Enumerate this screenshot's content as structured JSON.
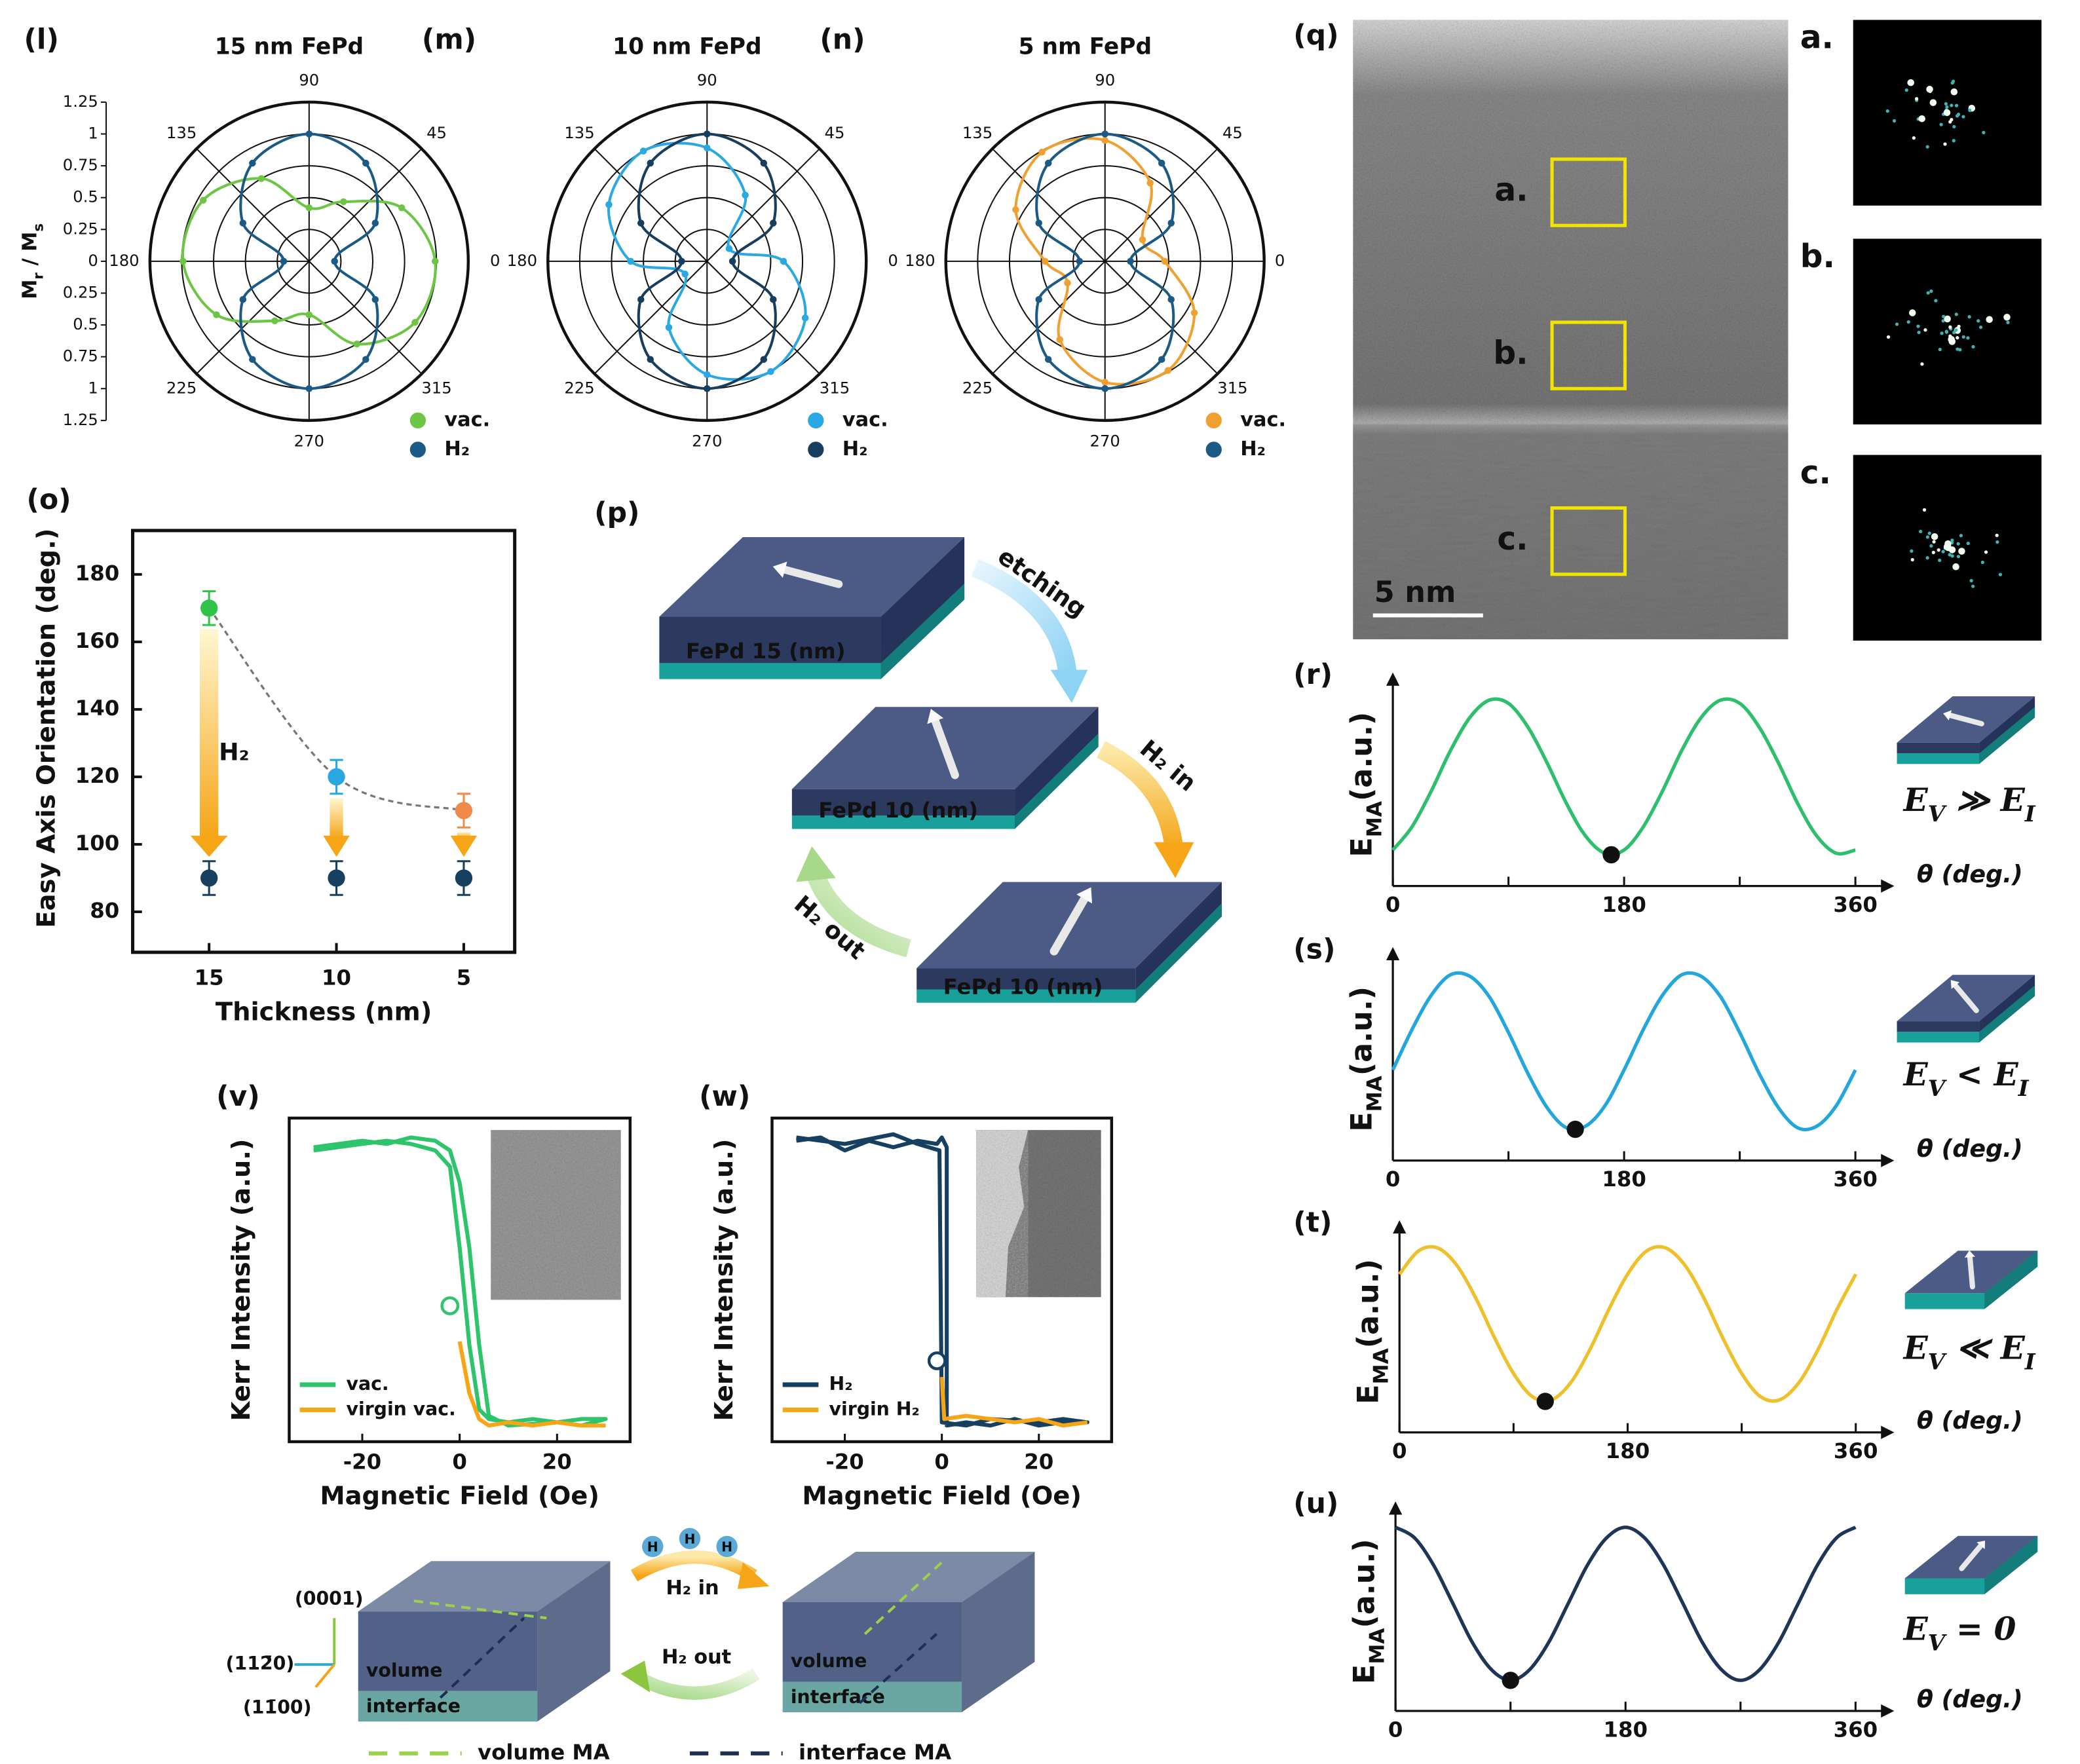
{
  "chart_data": [
    {
      "type": "polar",
      "label": "(l)",
      "title": "15 nm FePd",
      "r_label": [
        {
          "text": "M"
        },
        {
          "text": "r",
          "sub": true
        },
        {
          "text": " / M"
        },
        {
          "text": "s",
          "sub": true
        }
      ],
      "rlim": [
        0,
        1.25
      ],
      "rticks": [
        0,
        0.25,
        0.5,
        0.75,
        1,
        1.25
      ],
      "rgrid": [
        0.25,
        0.5,
        0.75,
        1,
        1.25
      ],
      "thetaticks": [
        45,
        90,
        135,
        180,
        225,
        270,
        315
      ],
      "theta": [
        0,
        30,
        60,
        90,
        120,
        150,
        180,
        210,
        240,
        270,
        300,
        330
      ],
      "series": [
        {
          "name": "vac.",
          "color": "#6cc644",
          "values": [
            0.99,
            0.84,
            0.54,
            0.42,
            0.75,
            0.96,
            0.99,
            0.84,
            0.54,
            0.42,
            0.75,
            0.96
          ]
        },
        {
          "name": "H₂",
          "color": "#1b5a85",
          "values": [
            0.2,
            0.6,
            0.89,
            1,
            0.89,
            0.6,
            0.2,
            0.6,
            0.89,
            1,
            0.89,
            0.6
          ]
        }
      ]
    },
    {
      "type": "polar",
      "label": "(m)",
      "title": "10 nm FePd",
      "rlim": [
        0,
        1.25
      ],
      "rticks": [
        0
      ],
      "rgrid": [
        0.25,
        0.5,
        0.75,
        1,
        1.25
      ],
      "thetaticks": [
        45,
        90,
        135,
        180,
        225,
        270,
        315
      ],
      "theta": [
        0,
        30,
        60,
        90,
        120,
        150,
        180,
        210,
        240,
        270,
        300,
        330
      ],
      "series": [
        {
          "name": "vac.",
          "color": "#2aa8e3",
          "values": [
            0.6,
            0.2,
            0.6,
            0.89,
            1,
            0.89,
            0.6,
            0.2,
            0.6,
            0.89,
            1,
            0.89
          ]
        },
        {
          "name": "H₂",
          "color": "#173e5f",
          "values": [
            0.2,
            0.6,
            0.89,
            1,
            0.89,
            0.6,
            0.2,
            0.6,
            0.89,
            1,
            0.89,
            0.6
          ]
        }
      ]
    },
    {
      "type": "polar",
      "label": "(n)",
      "title": "5 nm FePd",
      "rlim": [
        0,
        1.25
      ],
      "rticks": [
        0
      ],
      "rgrid": [
        0.25,
        0.5,
        0.75,
        1,
        1.25
      ],
      "thetaticks": [
        0,
        45,
        90,
        135,
        180,
        225,
        270,
        315
      ],
      "theta": [
        0,
        30,
        60,
        90,
        120,
        150,
        180,
        210,
        240,
        270,
        300,
        330
      ],
      "series": [
        {
          "name": "vac.",
          "color": "#f0a030",
          "values": [
            0.47,
            0.34,
            0.71,
            0.95,
            0.99,
            0.81,
            0.47,
            0.34,
            0.71,
            0.95,
            0.99,
            0.81
          ]
        },
        {
          "name": "H₂",
          "color": "#1b5a85",
          "values": [
            0.2,
            0.6,
            0.89,
            1,
            0.89,
            0.6,
            0.2,
            0.6,
            0.89,
            1,
            0.89,
            0.6
          ]
        }
      ]
    },
    {
      "type": "errorbar",
      "label": "(o)",
      "x_label": "Thickness (nm)",
      "y_label": "Easy Axis Orientation (deg.)",
      "annotation": "H₂",
      "x": [
        15,
        10,
        5
      ],
      "xlim": [
        18,
        3
      ],
      "xticks": [
        15,
        10,
        5
      ],
      "ylim": [
        68,
        193
      ],
      "yticks": [
        80,
        100,
        120,
        140,
        160,
        180
      ],
      "series": [
        {
          "colors": [
            "#2ec44a",
            "#29a8e0",
            "#f08a4b"
          ],
          "values": [
            170,
            120,
            110
          ],
          "errors": [
            5,
            5,
            5
          ],
          "trend": true
        },
        {
          "color": "#173f5f",
          "values": [
            90,
            90,
            90
          ],
          "errors": [
            5,
            5,
            5
          ]
        }
      ]
    },
    {
      "type": "line",
      "label": "(r)",
      "x_label": "θ (deg.)",
      "y_label": [
        {
          "text": "E"
        },
        {
          "text": "MA",
          "sub": true
        },
        {
          "text": "(a.u.)"
        }
      ],
      "annotation": [
        {
          "text": "E"
        },
        {
          "text": "V",
          "sub": true
        },
        {
          "text": " ≫ E"
        },
        {
          "text": "I",
          "sub": true
        }
      ],
      "xlim": [
        0,
        382
      ],
      "xticks": [
        0,
        180,
        360
      ],
      "xminorticks": [
        90,
        270
      ],
      "ylim": [
        -0.2,
        1.1
      ],
      "x": [
        0,
        15,
        30,
        45,
        60,
        75,
        90,
        105,
        120,
        135,
        150,
        165,
        180,
        195,
        210,
        225,
        240,
        255,
        270,
        285,
        300,
        315,
        330,
        345,
        360
      ],
      "series": [
        {
          "color": "#2dbf6b",
          "values": [
            0.03,
            0.18,
            0.41,
            0.67,
            0.88,
            0.99,
            0.97,
            0.82,
            0.59,
            0.33,
            0.12,
            0.01,
            0.03,
            0.18,
            0.41,
            0.67,
            0.88,
            0.99,
            0.97,
            0.82,
            0.59,
            0.33,
            0.12,
            0.01,
            0.03
          ]
        }
      ],
      "marker": {
        "x": 170,
        "y": 0
      }
    },
    {
      "type": "line",
      "label": "(s)",
      "x_label": "θ (deg.)",
      "y_label": [
        {
          "text": "E"
        },
        {
          "text": "MA",
          "sub": true
        },
        {
          "text": "(a.u.)"
        }
      ],
      "annotation": [
        {
          "text": "E"
        },
        {
          "text": "V",
          "sub": true
        },
        {
          "text": " < E"
        },
        {
          "text": "I",
          "sub": true
        }
      ],
      "xlim": [
        0,
        382
      ],
      "xticks": [
        0,
        180,
        360
      ],
      "xminorticks": [
        90,
        270
      ],
      "ylim": [
        -0.2,
        1.1
      ],
      "x": [
        0,
        15,
        30,
        45,
        60,
        75,
        90,
        105,
        120,
        135,
        150,
        165,
        180,
        195,
        210,
        225,
        240,
        255,
        270,
        285,
        300,
        315,
        330,
        345,
        360
      ],
      "series": [
        {
          "color": "#22a6dc",
          "values": [
            0.38,
            0.64,
            0.86,
            0.99,
            0.98,
            0.85,
            0.62,
            0.36,
            0.14,
            0.01,
            0.02,
            0.15,
            0.38,
            0.64,
            0.86,
            0.99,
            0.98,
            0.85,
            0.62,
            0.36,
            0.14,
            0.01,
            0.02,
            0.15,
            0.38
          ]
        }
      ],
      "marker": {
        "x": 142,
        "y": 0
      }
    },
    {
      "type": "line",
      "label": "(t)",
      "x_label": "θ (deg.)",
      "y_label": [
        {
          "text": "E"
        },
        {
          "text": "MA",
          "sub": true
        },
        {
          "text": "(a.u.)"
        }
      ],
      "annotation": [
        {
          "text": "E"
        },
        {
          "text": "V",
          "sub": true
        },
        {
          "text": " ≪ E"
        },
        {
          "text": "I",
          "sub": true
        }
      ],
      "xlim": [
        0,
        382
      ],
      "xticks": [
        0,
        180,
        360
      ],
      "xminorticks": [
        90,
        270
      ],
      "ylim": [
        -0.2,
        1.1
      ],
      "x": [
        0,
        15,
        30,
        45,
        60,
        75,
        90,
        105,
        120,
        135,
        150,
        165,
        180,
        195,
        210,
        225,
        240,
        255,
        270,
        285,
        300,
        315,
        330,
        345,
        360
      ],
      "series": [
        {
          "color": "#eec02b",
          "values": [
            0.82,
            0.97,
            0.99,
            0.88,
            0.67,
            0.41,
            0.18,
            0.03,
            0.01,
            0.12,
            0.33,
            0.59,
            0.82,
            0.97,
            0.99,
            0.88,
            0.67,
            0.41,
            0.18,
            0.03,
            0.01,
            0.12,
            0.33,
            0.59,
            0.82
          ]
        }
      ],
      "marker": {
        "x": 115,
        "y": 0
      }
    },
    {
      "type": "line",
      "label": "(u)",
      "x_label": "θ (deg.)",
      "y_label": [
        {
          "text": "E"
        },
        {
          "text": "MA",
          "sub": true
        },
        {
          "text": "(a.u.)"
        }
      ],
      "annotation": [
        {
          "text": "E"
        },
        {
          "text": "V",
          "sub": true
        },
        {
          "text": " = 0"
        }
      ],
      "xlim": [
        0,
        382
      ],
      "xticks": [
        0,
        180,
        360
      ],
      "xminorticks": [
        90,
        270
      ],
      "ylim": [
        -0.2,
        1.1
      ],
      "x": [
        0,
        15,
        30,
        45,
        60,
        75,
        90,
        105,
        120,
        135,
        150,
        165,
        180,
        195,
        210,
        225,
        240,
        255,
        270,
        285,
        300,
        315,
        330,
        345,
        360
      ],
      "series": [
        {
          "color": "#1d3557",
          "values": [
            1,
            0.93,
            0.75,
            0.5,
            0.25,
            0.07,
            0,
            0.07,
            0.25,
            0.5,
            0.75,
            0.93,
            1,
            0.93,
            0.75,
            0.5,
            0.25,
            0.07,
            0,
            0.07,
            0.25,
            0.5,
            0.75,
            0.93,
            1
          ]
        }
      ],
      "marker": {
        "x": 90,
        "y": 0
      }
    },
    {
      "type": "hysteresis",
      "label": "(v)",
      "x_label": "Magnetic Field (Oe)",
      "y_label": "Kerr Intensity (a.u.)",
      "xlim": [
        -35,
        35
      ],
      "xticks": [
        -20,
        0,
        20
      ],
      "ylim": [
        0,
        1
      ],
      "series": [
        {
          "name": "vac.",
          "color": "#2ec46b",
          "x": [
            -30,
            -20,
            -15,
            -10,
            -5,
            -2,
            0,
            2,
            4,
            6,
            10,
            15,
            20,
            25,
            30,
            25,
            20,
            10,
            6,
            4,
            2,
            0,
            -2,
            -5,
            -10,
            -15,
            -20,
            -30
          ],
          "values": [
            0.9,
            0.92,
            0.93,
            0.92,
            0.9,
            0.85,
            0.6,
            0.3,
            0.1,
            0.07,
            0.06,
            0.07,
            0.06,
            0.07,
            0.07,
            0.05,
            0.06,
            0.05,
            0.08,
            0.3,
            0.6,
            0.8,
            0.9,
            0.93,
            0.94,
            0.92,
            0.93,
            0.91
          ]
        },
        {
          "name": "virgin vac.",
          "color": "#f5a516",
          "x": [
            0,
            2,
            4,
            6,
            10,
            15,
            20,
            25,
            30
          ],
          "values": [
            0.31,
            0.15,
            0.07,
            0.05,
            0.06,
            0.05,
            0.06,
            0.05,
            0.05
          ]
        }
      ],
      "marker": {
        "x": -2,
        "y": 0.42
      }
    },
    {
      "type": "hysteresis",
      "label": "(w)",
      "x_label": "Magnetic Field (Oe)",
      "y_label": "Kerr Intensity (a.u.)",
      "xlim": [
        -35,
        35
      ],
      "xticks": [
        -20,
        0,
        20
      ],
      "ylim": [
        0,
        1
      ],
      "series": [
        {
          "name": "H₂",
          "color": "#173f5f",
          "x": [
            -30,
            -25,
            -20,
            -15,
            -10,
            -5,
            -1,
            0,
            1,
            1,
            5,
            10,
            15,
            20,
            25,
            30,
            25,
            20,
            10,
            5,
            0,
            -0.5,
            -5,
            -10,
            -20,
            -30
          ],
          "values": [
            0.93,
            0.94,
            0.9,
            0.93,
            0.91,
            0.93,
            0.92,
            0.94,
            0.91,
            0.05,
            0.06,
            0.05,
            0.07,
            0.05,
            0.06,
            0.06,
            0.07,
            0.06,
            0.07,
            0.05,
            0.06,
            0.9,
            0.92,
            0.95,
            0.92,
            0.94
          ]
        },
        {
          "name": "virgin H₂",
          "color": "#f5a516",
          "x": [
            0,
            0.5,
            5,
            10,
            15,
            20,
            25,
            30
          ],
          "values": [
            0.2,
            0.07,
            0.08,
            0.07,
            0.06,
            0.07,
            0.05,
            0.06
          ]
        }
      ],
      "marker": {
        "x": -1,
        "y": 0.25
      }
    }
  ],
  "panel_p": {
    "label": "(p)",
    "arrows": [
      "etching",
      "H₂ in",
      "H₂ out"
    ],
    "films": [
      "FePd 15 (nm)",
      "FePd 10 (nm)",
      "FePd 10 (nm)"
    ]
  },
  "panel_q": {
    "label": "(q)",
    "regions": [
      "a.",
      "b.",
      "c."
    ],
    "scale_bar": "5 nm",
    "fft_labels": [
      "a.",
      "b.",
      "c."
    ]
  },
  "schematic": {
    "axes": [
      "(0001)",
      "(112̄0)",
      "(11̄00)"
    ],
    "layers": [
      "volume",
      "interface"
    ],
    "arrows": [
      "H₂ in",
      "H₂ out"
    ],
    "atoms": [
      "H",
      "H",
      "H"
    ],
    "legend": [
      "volume MA",
      "interface MA"
    ]
  }
}
